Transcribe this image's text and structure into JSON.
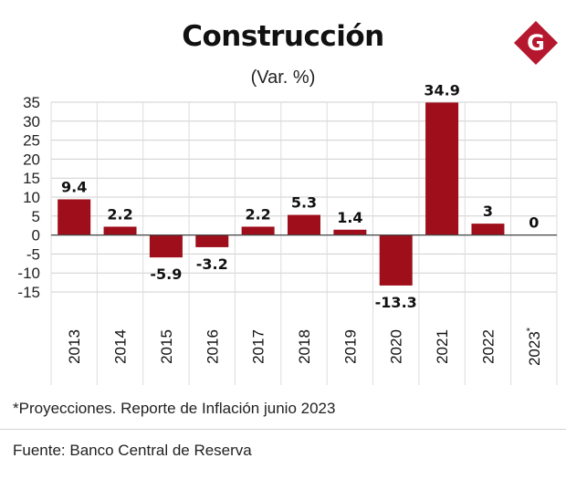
{
  "header": {
    "title": "Construcción",
    "subtitle": "(Var. %)",
    "logo_letter": "G",
    "logo_color": "#b5172e"
  },
  "chart_data": {
    "type": "bar",
    "categories": [
      "2013",
      "2014",
      "2015",
      "2016",
      "2017",
      "2018",
      "2019",
      "2020",
      "2021",
      "2022",
      "2023*"
    ],
    "values": [
      9.4,
      2.2,
      -5.9,
      -3.2,
      2.2,
      5.3,
      1.4,
      -13.3,
      34.9,
      3,
      0
    ],
    "data_labels": [
      "9.4",
      "2.2",
      "-5.9",
      "-3.2",
      "2.2",
      "5.3",
      "1.4",
      "-13.3",
      "34.9",
      "3",
      "0"
    ],
    "ylim": [
      -15,
      35
    ],
    "yticks": [
      35,
      30,
      25,
      20,
      15,
      10,
      5,
      0,
      -5,
      -10,
      -15
    ],
    "grid": true,
    "bar_color": "#9e0e1b",
    "title": "Construcción",
    "subtitle": "(Var. %)",
    "xlabel": "",
    "ylabel": ""
  },
  "footer": {
    "footnote": "*Proyecciones. Reporte de Inflación junio 2023",
    "source": "Fuente: Banco Central de Reserva"
  }
}
